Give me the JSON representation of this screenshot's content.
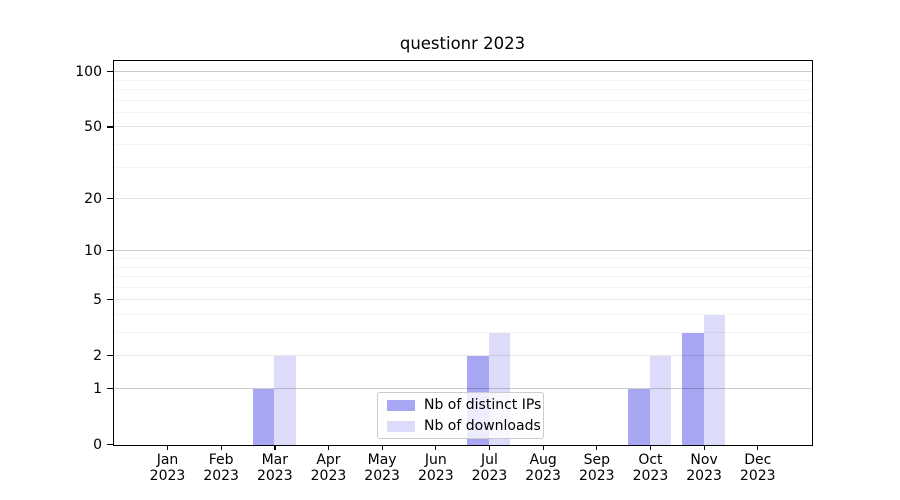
{
  "page_title": "questionr 2023",
  "chart_data": {
    "type": "bar",
    "title": "questionr 2023",
    "categories": [
      "Jan",
      "Feb",
      "Mar",
      "Apr",
      "May",
      "Jun",
      "Jul",
      "Aug",
      "Sep",
      "Oct",
      "Nov",
      "Dec"
    ],
    "x_sublabel": "2023",
    "series": [
      {
        "name": "Nb of distinct IPs",
        "color": "#a6a6f2",
        "values": [
          0,
          0,
          1,
          0,
          0,
          0,
          2,
          0,
          0,
          1,
          3,
          0
        ]
      },
      {
        "name": "Nb of downloads",
        "color": "#dcdcfa",
        "values": [
          0,
          0,
          2,
          0,
          0,
          0,
          3,
          0,
          0,
          2,
          4,
          0
        ]
      }
    ],
    "yscale": "log1p",
    "ylim": [
      0,
      114
    ],
    "yticks": [
      0,
      1,
      2,
      5,
      10,
      20,
      50,
      100
    ],
    "yticks_minor": [
      3,
      4,
      6,
      7,
      8,
      9,
      30,
      40,
      60,
      70,
      80,
      90
    ],
    "grid": true,
    "legend_position": "lower center",
    "xlabel": "",
    "ylabel": ""
  },
  "legend": {
    "items": [
      "Nb of distinct IPs",
      "Nb of downloads"
    ]
  }
}
